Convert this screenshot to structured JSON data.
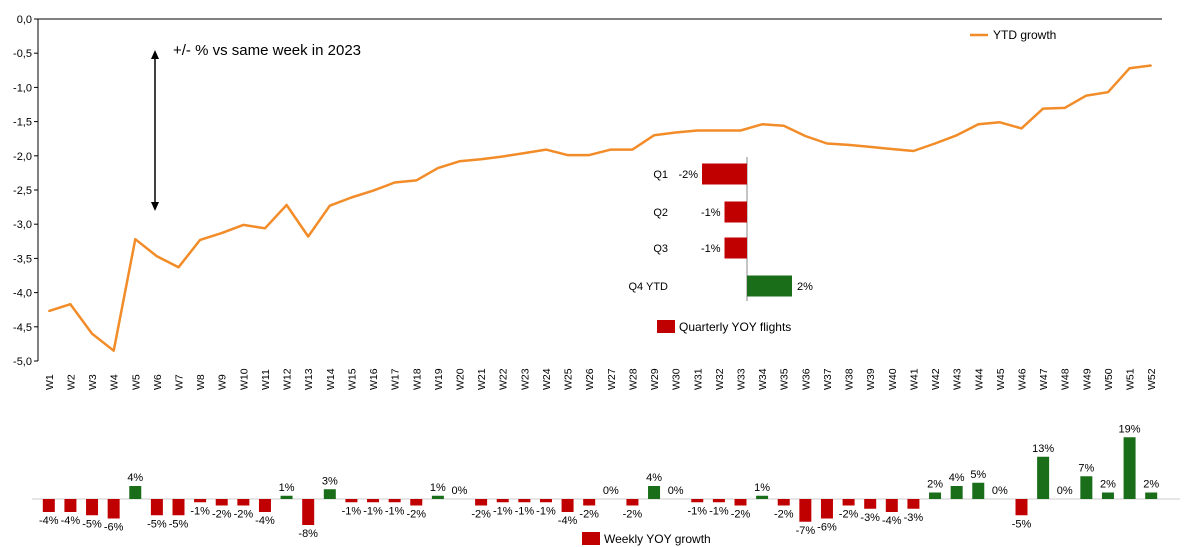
{
  "colors": {
    "line": "#f28c28",
    "negative": "#c00000",
    "positive": "#1a6e1a",
    "axis": "#000000"
  },
  "annotation": "+/- %  vs same week in 2023",
  "chart_data": [
    {
      "type": "line",
      "y_tick_labels": [
        "0,0",
        "-0,5",
        "-1,0",
        "-1,5",
        "-2,0",
        "-2,5",
        "-3,0",
        "-3,5",
        "-4,0",
        "-4,5",
        "-5,0"
      ],
      "ylim": [
        -5.0,
        0.0
      ],
      "categories": [
        "W1",
        "W2",
        "W3",
        "W4",
        "W5",
        "W6",
        "W7",
        "W8",
        "W9",
        "W10",
        "W11",
        "W12",
        "W13",
        "W14",
        "W15",
        "W16",
        "W17",
        "W18",
        "W19",
        "W20",
        "W21",
        "W22",
        "W23",
        "W24",
        "W25",
        "W26",
        "W27",
        "W28",
        "W29",
        "W30",
        "W31",
        "W32",
        "W33",
        "W34",
        "W35",
        "W36",
        "W37",
        "W38",
        "W39",
        "W40",
        "W41",
        "W42",
        "W43",
        "W44",
        "W45",
        "W46",
        "W47",
        "W48",
        "W49",
        "W50",
        "W51",
        "W52"
      ],
      "series": [
        {
          "name": "YTD growth",
          "values": [
            -4.27,
            -4.17,
            -4.6,
            -4.85,
            -3.22,
            -3.47,
            -3.63,
            -3.23,
            -3.13,
            -3.01,
            -3.06,
            -2.72,
            -3.18,
            -2.73,
            -2.61,
            -2.51,
            -2.39,
            -2.36,
            -2.18,
            -2.08,
            -2.05,
            -2.01,
            -1.96,
            -1.91,
            -1.99,
            -1.99,
            -1.91,
            -1.91,
            -1.7,
            -1.66,
            -1.63,
            -1.63,
            -1.63,
            -1.54,
            -1.56,
            -1.71,
            -1.82,
            -1.84,
            -1.87,
            -1.9,
            -1.93,
            -1.82,
            -1.7,
            -1.54,
            -1.51,
            -1.6,
            -1.31,
            -1.3,
            -1.12,
            -1.07,
            -0.72,
            -0.68
          ]
        }
      ],
      "legend": "top-right",
      "grid": false
    },
    {
      "type": "bar",
      "orientation": "horizontal",
      "categories": [
        "Q1",
        "Q2",
        "Q3",
        "Q4 YTD"
      ],
      "values": [
        -2,
        -1,
        -1,
        2
      ],
      "value_labels": [
        "-2%",
        "-1%",
        "-1%",
        "2%"
      ],
      "legend": "Quarterly YOY flights"
    },
    {
      "type": "bar",
      "categories": [
        "W1",
        "W2",
        "W3",
        "W4",
        "W5",
        "W6",
        "W7",
        "W8",
        "W9",
        "W10",
        "W11",
        "W12",
        "W13",
        "W14",
        "W15",
        "W16",
        "W17",
        "W18",
        "W19",
        "W20",
        "W21",
        "W22",
        "W23",
        "W24",
        "W25",
        "W26",
        "W27",
        "W28",
        "W29",
        "W30",
        "W31",
        "W32",
        "W33",
        "W34",
        "W35",
        "W36",
        "W37",
        "W38",
        "W39",
        "W40",
        "W41",
        "W42",
        "W43",
        "W44",
        "W45",
        "W46",
        "W47",
        "W48",
        "W49",
        "W50",
        "W51",
        "W52"
      ],
      "values": [
        -4,
        -4,
        -5,
        -6,
        4,
        -5,
        -5,
        -1,
        -2,
        -2,
        -4,
        1,
        -8,
        3,
        -1,
        -1,
        -1,
        -2,
        1,
        0,
        -2,
        -1,
        -1,
        -1,
        -4,
        -2,
        0,
        -2,
        4,
        0,
        -1,
        -1,
        -2,
        1,
        -2,
        -7,
        -6,
        -2,
        -3,
        -4,
        -3,
        2,
        4,
        5,
        0,
        -5,
        13,
        0,
        7,
        2,
        19,
        2
      ],
      "value_labels": [
        "-4%",
        "-4%",
        "-5%",
        "-6%",
        "4%",
        "-5%",
        "-5%",
        "-1%",
        "-2%",
        "-2%",
        "-4%",
        "1%",
        "-8%",
        "3%",
        "-1%",
        "-1%",
        "-1%",
        "-2%",
        "1%",
        "0%",
        "-2%",
        "-1%",
        "-1%",
        "-1%",
        "-4%",
        "-2%",
        "0%",
        "-2%",
        "4%",
        "0%",
        "-1%",
        "-1%",
        "-2%",
        "1%",
        "-2%",
        "-7%",
        "-6%",
        "-2%",
        "-3%",
        "-4%",
        "-3%",
        "2%",
        "4%",
        "5%",
        "0%",
        "-5%",
        "13%",
        "0%",
        "7%",
        "2%",
        "19%",
        "2%"
      ],
      "legend": "Weekly YOY growth"
    }
  ]
}
